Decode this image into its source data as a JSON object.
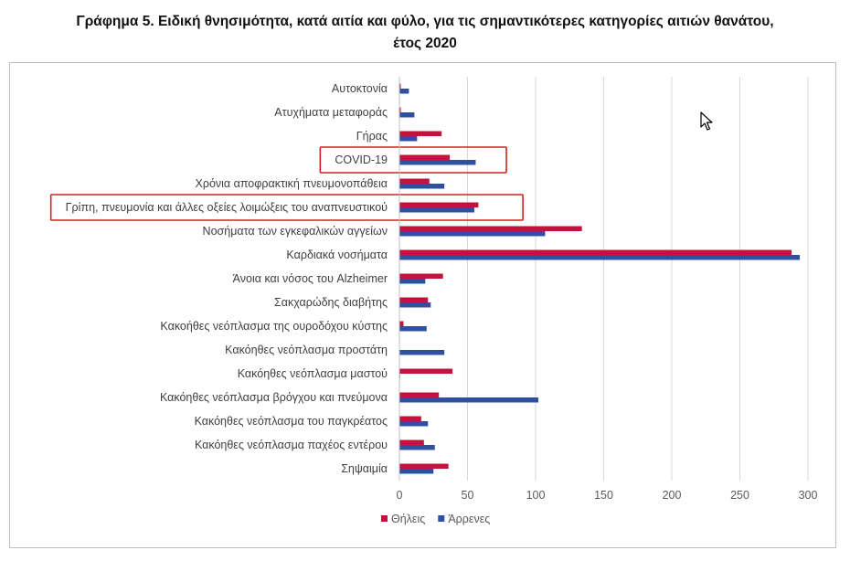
{
  "title": {
    "line1": "Γράφημα 5. Ειδική θνησιμότητα, κατά αιτία και φύλο, για τις σημαντικότερες κατηγορίες αιτιών θανάτου,",
    "line2": "έτος 2020"
  },
  "chart_data": {
    "type": "bar",
    "orientation": "horizontal",
    "categories": [
      "Αυτοκτονία",
      "Ατυχήματα μεταφοράς",
      "Γήρας",
      "COVID-19",
      "Χρόνια αποφρακτική πνευμονοπάθεια",
      "Γρίπη, πνευμονία και άλλες οξείες λοιμώξεις του αναπνευστικού",
      "Νοσήματα των εγκεφαλικών αγγείων",
      "Καρδιακά νοσήματα",
      "Άνοια και νόσος του Alzheimer",
      "Σακχαρώδης διαβήτης",
      "Κακοήθες νεόπλασμα της ουροδόχου κύστης",
      "Κακόηθες νεόπλασμα προστάτη",
      "Κακόηθες νεόπλασμα μαστού",
      "Κακόηθες νεόπλασμα βρόγχου και πνεύμονα",
      "Κακόηθες νεόπλασμα του παγκρέατος",
      "Κακόηθες νεόπλασμα παχέος εντέρου",
      "Σηψαιμία"
    ],
    "series": [
      {
        "name": "Θήλεις",
        "color": "#c0143c",
        "values": [
          1,
          1,
          31,
          37,
          22,
          58,
          134,
          288,
          32,
          21,
          3,
          0,
          39,
          29,
          16,
          18,
          36
        ]
      },
      {
        "name": "Άρρενες",
        "color": "#2f4f9f",
        "values": [
          7,
          11,
          13,
          56,
          33,
          55,
          107,
          294,
          19,
          23,
          20,
          33,
          0.5,
          102,
          21,
          26,
          25
        ]
      }
    ],
    "xlim": [
      0,
      300
    ],
    "xticks": [
      0,
      50,
      100,
      150,
      200,
      250,
      300
    ],
    "grid": true,
    "legend_position": "bottom",
    "highlighted_categories": [
      "COVID-19",
      "Γρίπη, πνευμονία και άλλες οξείες λοιμώξεις του αναπνευστικού"
    ],
    "highlight_color": "#d42020"
  }
}
